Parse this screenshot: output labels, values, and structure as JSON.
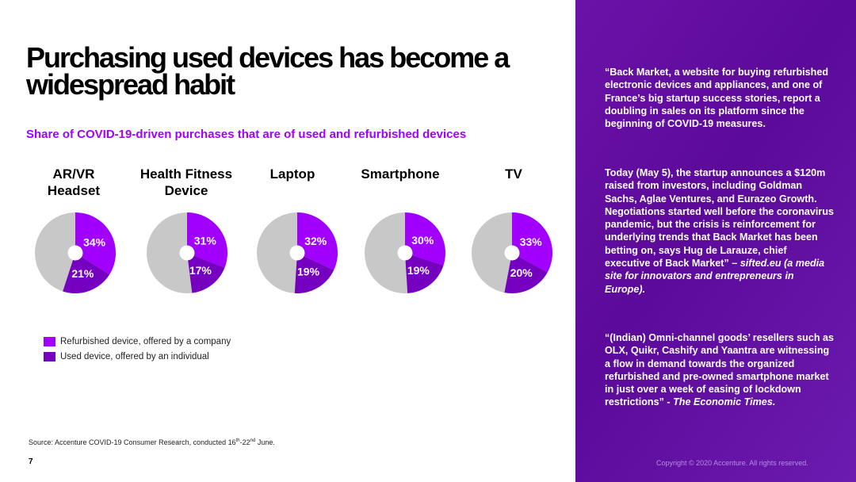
{
  "title": "Purchasing used devices has become a widespread habit",
  "subtitle": "Share of COVID-19-driven purchases that are of used and refurbished devices",
  "legend": {
    "refurbished": "Refurbished device, offered by a company",
    "used": "Used device, offered by an individual"
  },
  "colors": {
    "accent": "#a100ff",
    "refurbished": "#a100ff",
    "used": "#7500c0",
    "remainder": "#c8c8c8",
    "panel": "#5c0a9a"
  },
  "chart_data": {
    "type": "pie",
    "title": "Share of COVID-19-driven purchases that are of used and refurbished devices",
    "categories": [
      "AR/VR Headset",
      "Health Fitness Device",
      "Laptop",
      "Smartphone",
      "TV"
    ],
    "series": [
      {
        "name": "Refurbished device, offered by a company",
        "values": [
          34,
          31,
          32,
          30,
          33
        ]
      },
      {
        "name": "Used device, offered by an individual",
        "values": [
          21,
          17,
          19,
          19,
          20
        ]
      }
    ],
    "value_labels": {
      "refurbished": [
        "34%",
        "31%",
        "32%",
        "30%",
        "33%"
      ],
      "used": [
        "21%",
        "17%",
        "19%",
        "19%",
        "20%"
      ]
    },
    "legend_position": "bottom-left"
  },
  "charts": [
    {
      "label_lines": [
        "AR/VR",
        "Headset"
      ]
    },
    {
      "label_lines": [
        "Health Fitness",
        "Device"
      ]
    },
    {
      "label_lines": [
        "Laptop"
      ]
    },
    {
      "label_lines": [
        "Smartphone"
      ]
    },
    {
      "label_lines": [
        "TV"
      ]
    }
  ],
  "source": {
    "prefix": "Source: Accenture COVID-19 Consumer Research, conducted 16",
    "sup1": "th",
    "mid": "-22",
    "sup2": "nd",
    "suffix": " June."
  },
  "page_number": "7",
  "quotes": {
    "q1": "“Back Market, a website for buying refurbished electronic devices and appliances, and one of France’s big startup success stories, report a doubling in sales on its platform since the beginning of COVID-19 measures.",
    "q2_main": "Today (May 5), the startup announces a $120m raised from investors, including Goldman Sachs, Aglae Ventures, and Eurazeo Growth. Negotiations started well before the coronavirus pandemic, but the crisis is reinforcement for underlying trends that Back Market has been betting on, says Hug de Larauze, chief executive of Back Market” – ",
    "q2_source": "sifted.eu (a media site for innovators and entrepreneurs in Europe).",
    "q3_main": " “(Indian) Omni-channel goods’ resellers such as OLX, Quikr, Cashify and Yaantra are witnessing a flow in demand towards the organized refurbished and pre-owned smartphone market in just over a week of easing of lockdown restrictions”  - ",
    "q3_source": "The Economic Times."
  },
  "copyright": "Copyright © 2020 Accenture. All rights reserved."
}
